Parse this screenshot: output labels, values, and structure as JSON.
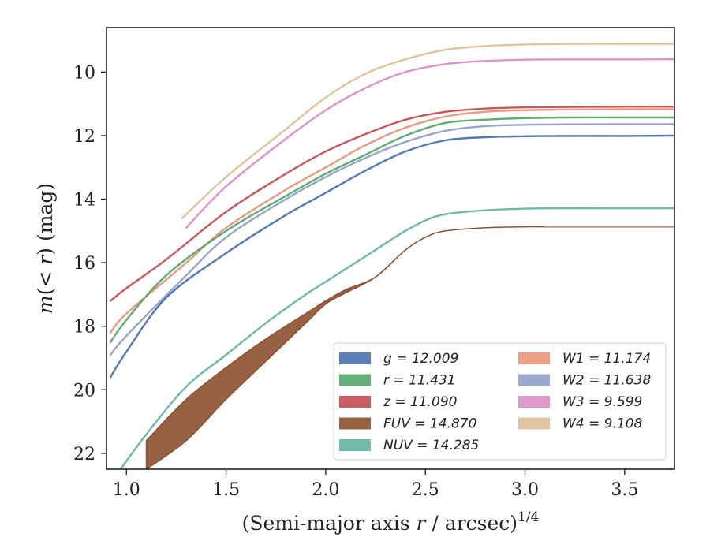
{
  "chart_data": {
    "type": "line",
    "xlabel": "(Semi-major axis r / arcsec)^1/4",
    "xlabel_parts": {
      "prefix": "(Semi-major axis ",
      "var": "r",
      "mid": " / arcsec)",
      "sup": "1/4"
    },
    "ylabel": "m(<r) (mag)",
    "ylabel_parts": {
      "m": "m",
      "open": "(",
      "lt": "<",
      "r": "r",
      "close": ")",
      "unit": " (mag)"
    },
    "xlim": [
      0.9,
      3.75
    ],
    "ylim": [
      22.5,
      8.6
    ],
    "y_inverted": true,
    "xticks": [
      "1.0",
      "1.5",
      "2.0",
      "2.5",
      "3.0",
      "3.5"
    ],
    "yticks": [
      "10",
      "12",
      "14",
      "16",
      "18",
      "20",
      "22"
    ],
    "grid": false,
    "legend_position": "lower-right",
    "legend_columns": 2,
    "series": [
      {
        "name": "g",
        "total": "12.009",
        "color": "#4c72b0",
        "x": [
          0.92,
          1.0,
          1.2,
          1.5,
          1.8,
          2.0,
          2.2,
          2.4,
          2.6,
          2.8,
          3.0,
          3.2,
          3.5,
          3.75
        ],
        "y": [
          19.6,
          18.8,
          17.1,
          15.7,
          14.5,
          13.8,
          13.1,
          12.5,
          12.15,
          12.05,
          12.02,
          12.01,
          12.01,
          12.0
        ]
      },
      {
        "name": "r",
        "total": "11.431",
        "color": "#55a868",
        "x": [
          0.92,
          1.0,
          1.2,
          1.5,
          1.8,
          2.0,
          2.2,
          2.4,
          2.6,
          2.8,
          3.0,
          3.2,
          3.5,
          3.75
        ],
        "y": [
          18.5,
          17.8,
          16.4,
          15.0,
          13.9,
          13.2,
          12.6,
          12.0,
          11.6,
          11.5,
          11.45,
          11.43,
          11.43,
          11.43
        ]
      },
      {
        "name": "z",
        "total": "11.090",
        "color": "#c44e52",
        "x": [
          0.92,
          1.0,
          1.2,
          1.5,
          1.8,
          2.0,
          2.2,
          2.4,
          2.6,
          2.8,
          3.0,
          3.2,
          3.5,
          3.75
        ],
        "y": [
          17.2,
          16.8,
          15.9,
          14.4,
          13.2,
          12.5,
          11.95,
          11.5,
          11.25,
          11.15,
          11.11,
          11.1,
          11.09,
          11.09
        ]
      },
      {
        "name": "FUV",
        "total": "14.870",
        "color": "#8c5030",
        "band": true,
        "x": [
          1.1,
          1.3,
          1.5,
          1.7,
          1.9,
          2.0,
          2.1,
          2.25,
          2.4,
          2.5,
          2.6,
          2.8,
          3.0,
          3.1
        ],
        "y_upper": [
          21.6,
          20.3,
          19.3,
          18.4,
          17.6,
          17.2,
          16.85,
          16.45,
          15.6,
          15.2,
          15.0,
          14.9,
          14.87,
          14.87
        ],
        "y_lower": [
          22.5,
          21.6,
          20.3,
          19.1,
          17.9,
          17.3,
          16.95,
          16.45,
          15.6,
          15.2,
          15.0,
          14.9,
          14.87,
          14.87
        ],
        "x_ext": [
          3.1,
          3.75
        ],
        "y_ext": [
          14.87,
          14.87
        ]
      },
      {
        "name": "NUV",
        "total": "14.285",
        "color": "#64b5a0",
        "x": [
          0.97,
          1.1,
          1.3,
          1.5,
          1.7,
          1.9,
          2.0,
          2.2,
          2.4,
          2.55,
          2.7,
          2.9,
          3.1,
          3.4,
          3.75
        ],
        "y": [
          22.5,
          21.4,
          19.9,
          18.9,
          17.9,
          17.0,
          16.6,
          15.8,
          15.0,
          14.55,
          14.4,
          14.32,
          14.29,
          14.285,
          14.285
        ]
      },
      {
        "name": "W1",
        "total": "11.174",
        "color": "#e8957a",
        "x": [
          0.92,
          1.0,
          1.3,
          1.5,
          1.8,
          2.0,
          2.2,
          2.4,
          2.6,
          2.8,
          3.0,
          3.2,
          3.5,
          3.75
        ],
        "y": [
          18.2,
          17.6,
          16.0,
          14.9,
          13.7,
          13.0,
          12.3,
          11.75,
          11.4,
          11.25,
          11.2,
          11.18,
          11.17,
          11.17
        ]
      },
      {
        "name": "W2",
        "total": "11.638",
        "color": "#8fa0c8",
        "x": [
          0.92,
          1.0,
          1.3,
          1.5,
          1.8,
          2.0,
          2.2,
          2.4,
          2.6,
          2.8,
          3.0,
          3.2,
          3.5,
          3.75
        ],
        "y": [
          18.9,
          18.3,
          16.4,
          15.2,
          14.0,
          13.3,
          12.7,
          12.2,
          11.85,
          11.7,
          11.66,
          11.645,
          11.64,
          11.638
        ]
      },
      {
        "name": "W3",
        "total": "9.599",
        "color": "#dd8cc4",
        "x": [
          1.3,
          1.5,
          1.8,
          2.0,
          2.2,
          2.4,
          2.6,
          2.8,
          3.0,
          3.2,
          3.5,
          3.75
        ],
        "y": [
          14.9,
          13.6,
          12.1,
          11.2,
          10.5,
          10.0,
          9.75,
          9.65,
          9.61,
          9.6,
          9.6,
          9.599
        ]
      },
      {
        "name": "W4",
        "total": "9.108",
        "color": "#dcc096",
        "x": [
          1.28,
          1.5,
          1.8,
          2.0,
          2.2,
          2.4,
          2.6,
          2.8,
          3.0,
          3.2,
          3.5,
          3.75
        ],
        "y": [
          14.6,
          13.3,
          11.8,
          10.8,
          10.05,
          9.6,
          9.3,
          9.18,
          9.13,
          9.115,
          9.11,
          9.108
        ]
      }
    ]
  }
}
